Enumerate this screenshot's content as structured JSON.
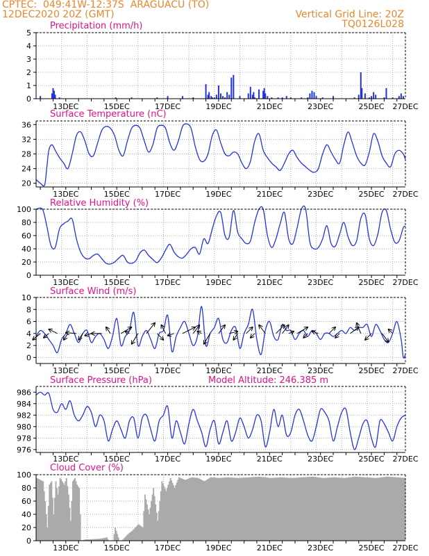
{
  "header": {
    "line1": "CPTEC:  049:41W-12:37S  ARAGUACU (TO)",
    "line2": "12DEC2020 20Z (GMT)",
    "grid_note": "Vertical Grid Line: 20Z",
    "code": "TQ0126L028"
  },
  "colors": {
    "header": "#e8862b",
    "title": "#e0118c",
    "series": "#2233dd",
    "bars": "#2233dd",
    "wind_arrows": "#000000",
    "cloud": "#aaaaaa",
    "grid": "#aaaaaa"
  },
  "x_axis": {
    "unit": "hours since 12DEC2020 20Z",
    "range": [
      0,
      348
    ],
    "grid_hours": [
      24,
      48,
      72,
      96,
      120,
      144,
      168,
      192,
      216,
      240,
      264,
      288,
      312,
      336
    ],
    "labels": [
      "13DEC",
      "15DEC",
      "17DEC",
      "19DEC",
      "21DEC",
      "23DEC",
      "25DEC",
      "27DEC"
    ],
    "label_hours": [
      28,
      76,
      124,
      172,
      220,
      268,
      316,
      348
    ]
  },
  "chart_data": [
    {
      "type": "bar",
      "title": "Precipitation (mm/h)",
      "ylim": [
        0,
        5
      ],
      "yticks": [
        0,
        1,
        2,
        3,
        4,
        5
      ],
      "x": [
        4,
        15,
        16,
        17,
        18,
        22,
        75,
        90,
        114,
        124,
        138,
        148,
        160,
        162,
        163,
        165,
        166,
        168,
        170,
        172,
        174,
        176,
        178,
        180,
        182,
        184,
        186,
        192,
        200,
        202,
        204,
        205,
        206,
        210,
        214,
        215,
        216,
        218,
        222,
        228,
        232,
        236,
        240,
        250,
        256,
        258,
        260,
        262,
        264,
        270,
        280,
        300,
        304,
        306,
        307,
        310,
        314,
        316,
        318,
        320,
        328,
        330,
        336,
        342,
        344,
        346
      ],
      "values": [
        0.2,
        0.4,
        0.8,
        0.6,
        0.3,
        0.1,
        0.1,
        0.1,
        0.1,
        0.2,
        0.2,
        0.1,
        1.1,
        0.3,
        0.5,
        0.2,
        0.1,
        0.1,
        0.3,
        1.0,
        0.4,
        0.2,
        0.1,
        0.5,
        0.3,
        1.6,
        1.8,
        0.2,
        0.4,
        0.9,
        0.3,
        0.5,
        0.1,
        0.7,
        0.6,
        0.8,
        0.4,
        0.2,
        0.1,
        0.1,
        0.1,
        0.2,
        0.1,
        0.1,
        0.1,
        0.4,
        0.6,
        0.5,
        0.2,
        0.1,
        0.2,
        0.1,
        0.3,
        2.0,
        0.8,
        0.4,
        0.1,
        0.2,
        0.5,
        0.3,
        0.1,
        0.8,
        0.1,
        0.2,
        0.4,
        0.2
      ]
    },
    {
      "type": "line",
      "title": "Surface Temperature (nC)",
      "ylim": [
        19,
        37
      ],
      "yticks": [
        20,
        24,
        28,
        32,
        36
      ],
      "x": [
        0,
        4,
        8,
        10,
        12,
        15,
        18,
        22,
        26,
        30,
        34,
        38,
        42,
        46,
        50,
        54,
        58,
        62,
        66,
        70,
        74,
        78,
        82,
        86,
        90,
        94,
        98,
        102,
        106,
        110,
        114,
        118,
        122,
        126,
        130,
        134,
        138,
        142,
        146,
        150,
        154,
        158,
        162,
        166,
        170,
        174,
        178,
        182,
        186,
        190,
        194,
        198,
        202,
        206,
        210,
        214,
        218,
        222,
        226,
        230,
        234,
        238,
        242,
        246,
        250,
        254,
        258,
        262,
        266,
        270,
        274,
        278,
        282,
        286,
        290,
        294,
        298,
        302,
        306,
        310,
        314,
        318,
        322,
        326,
        330,
        334,
        338,
        342,
        346,
        348
      ],
      "values": [
        21,
        20,
        19.5,
        24,
        29,
        30.5,
        29,
        27,
        25.5,
        24,
        28,
        33,
        34,
        31.5,
        28,
        27.5,
        31,
        34.5,
        35.5,
        35,
        33,
        29,
        27.5,
        31.5,
        35,
        35.8,
        35,
        31.5,
        28.5,
        30.5,
        35,
        35.8,
        35,
        31,
        29,
        31.5,
        35.5,
        36.2,
        35,
        30,
        26.5,
        26,
        28,
        33,
        34.5,
        31,
        28,
        27.5,
        28.5,
        28,
        25.5,
        24,
        26,
        31.5,
        33.5,
        29,
        27,
        25.5,
        24.5,
        23.5,
        25.5,
        28,
        29,
        27,
        25.5,
        24.5,
        23.5,
        23,
        24,
        28,
        30.5,
        28.5,
        26.5,
        25.5,
        30.5,
        34,
        31,
        27.5,
        25.5,
        25,
        28.5,
        33.5,
        31.5,
        27.5,
        25.5,
        24.5,
        28,
        29,
        28,
        26.5
      ]
    },
    {
      "type": "line",
      "title": "Relative Humidity (%)",
      "ylim": [
        0,
        100
      ],
      "yticks": [
        0,
        20,
        40,
        60,
        80,
        100
      ],
      "x": [
        0,
        6,
        10,
        14,
        18,
        22,
        26,
        30,
        34,
        38,
        42,
        46,
        50,
        54,
        58,
        62,
        66,
        70,
        74,
        78,
        82,
        86,
        90,
        94,
        98,
        102,
        106,
        110,
        114,
        118,
        122,
        126,
        130,
        134,
        138,
        142,
        146,
        150,
        154,
        158,
        162,
        166,
        170,
        174,
        178,
        182,
        186,
        190,
        194,
        198,
        202,
        206,
        210,
        214,
        218,
        222,
        226,
        230,
        234,
        238,
        242,
        246,
        250,
        254,
        258,
        262,
        266,
        270,
        274,
        278,
        282,
        286,
        290,
        294,
        298,
        302,
        306,
        310,
        314,
        318,
        322,
        326,
        330,
        334,
        338,
        342,
        346,
        348
      ],
      "values": [
        100,
        100,
        75,
        45,
        42,
        70,
        78,
        82,
        85,
        55,
        35,
        26,
        25,
        30,
        32,
        25,
        18,
        17,
        20,
        26,
        30,
        20,
        18,
        22,
        34,
        38,
        30,
        24,
        19,
        26,
        38,
        47,
        35,
        28,
        26,
        32,
        40,
        42,
        32,
        55,
        48,
        70,
        90,
        95,
        60,
        58,
        98,
        65,
        55,
        48,
        52,
        80,
        100,
        100,
        60,
        42,
        55,
        78,
        95,
        55,
        48,
        72,
        100,
        100,
        50,
        40,
        42,
        55,
        75,
        48,
        44,
        62,
        80,
        58,
        45,
        52,
        86,
        92,
        55,
        45,
        62,
        95,
        98,
        70,
        50,
        52,
        72,
        74
      ]
    },
    {
      "type": "line",
      "title": "Surface Wind (m/s)",
      "ylim": [
        -1,
        10
      ],
      "yticks": [
        0,
        2,
        4,
        6,
        8,
        10
      ],
      "x": [
        0,
        4,
        8,
        12,
        16,
        20,
        24,
        28,
        32,
        36,
        40,
        44,
        48,
        52,
        56,
        60,
        64,
        68,
        72,
        76,
        80,
        84,
        88,
        92,
        96,
        100,
        104,
        108,
        112,
        116,
        120,
        124,
        128,
        132,
        136,
        140,
        144,
        148,
        152,
        156,
        160,
        164,
        168,
        172,
        176,
        180,
        184,
        188,
        192,
        196,
        200,
        204,
        208,
        212,
        216,
        220,
        224,
        228,
        232,
        236,
        240,
        244,
        248,
        252,
        256,
        260,
        264,
        268,
        272,
        276,
        280,
        284,
        288,
        292,
        296,
        300,
        304,
        308,
        312,
        316,
        320,
        324,
        328,
        332,
        336,
        340,
        344,
        346,
        348
      ],
      "values": [
        3.5,
        4.5,
        4,
        3,
        2,
        0.8,
        3,
        4,
        5.5,
        4,
        2.5,
        4,
        4.5,
        2.5,
        3.5,
        4,
        3,
        1.5,
        3.5,
        6.5,
        2,
        3.5,
        4.5,
        7.5,
        2,
        3.5,
        4.5,
        3,
        1.5,
        4,
        4.5,
        7,
        1,
        3.5,
        5,
        6,
        4,
        2,
        3.5,
        8.5,
        2,
        4,
        5,
        6.5,
        3,
        2.5,
        4.5,
        5,
        1.5,
        4,
        5.5,
        8,
        3,
        0.5,
        4.5,
        6,
        3.5,
        3,
        5.5,
        4.5,
        4.5,
        3,
        4,
        4.5,
        3.5,
        4.5,
        4,
        3,
        4,
        4,
        3.5,
        4,
        4.5,
        4,
        5,
        4.5,
        5,
        5,
        5.5,
        3.5,
        5.5,
        4.5,
        3,
        2.5,
        4,
        6,
        3,
        0,
        0.5
      ],
      "arrows_x": [
        4,
        12,
        20,
        30,
        38,
        44,
        52,
        62,
        70,
        80,
        88,
        96,
        104,
        114,
        122,
        130,
        138,
        148,
        156,
        164,
        172,
        182,
        190,
        198,
        206,
        216,
        226,
        232,
        238,
        246,
        256,
        266,
        276,
        286,
        296,
        306,
        316,
        326,
        336
      ],
      "arrows_u": [
        -1.8,
        -1.2,
        -2,
        -1,
        -2.5,
        -1,
        -1.5,
        -2.5,
        -1,
        2.5,
        -1,
        -1.5,
        2,
        1.5,
        -1,
        -1.5,
        3,
        1.5,
        -1,
        -1.5,
        1.5,
        2,
        -1,
        1.5,
        -1,
        -1.5,
        2,
        1.5,
        1.2,
        2.5,
        -1,
        -1.5,
        1.5,
        -1,
        2,
        -1,
        -1.5,
        1.5,
        -1
      ],
      "arrows_v": [
        -1.5,
        -1,
        1,
        -1.5,
        0.2,
        -1.5,
        -0.5,
        0,
        1.5,
        1.5,
        0.5,
        -2.5,
        2.5,
        -1.5,
        2,
        -0.5,
        1.5,
        2,
        0.5,
        -2.5,
        2,
        0.5,
        -1.5,
        1.5,
        -1,
        2,
        2,
        2,
        0.5,
        1.5,
        -1,
        0.5,
        1.5,
        -1,
        1.5,
        2.5,
        -1.5,
        -2,
        1
      ]
    },
    {
      "type": "line",
      "title": "Surface Pressure (hPa)",
      "subtitle": "Model Altitude: 246.385 m",
      "ylim": [
        975.5,
        987
      ],
      "yticks": [
        976,
        978,
        980,
        982,
        984,
        986
      ],
      "x": [
        0,
        4,
        8,
        12,
        16,
        20,
        24,
        28,
        32,
        36,
        40,
        44,
        48,
        52,
        56,
        60,
        64,
        68,
        72,
        76,
        80,
        84,
        88,
        92,
        96,
        100,
        104,
        108,
        112,
        116,
        120,
        124,
        128,
        132,
        136,
        140,
        144,
        148,
        152,
        156,
        160,
        164,
        168,
        172,
        176,
        180,
        184,
        188,
        192,
        196,
        200,
        204,
        208,
        212,
        216,
        220,
        224,
        228,
        232,
        236,
        240,
        244,
        248,
        252,
        256,
        260,
        264,
        268,
        272,
        276,
        280,
        284,
        288,
        292,
        296,
        300,
        304,
        308,
        312,
        316,
        320,
        324,
        328,
        332,
        336,
        340,
        344,
        348
      ],
      "values": [
        985.5,
        986,
        985.5,
        985.8,
        983,
        982.5,
        984,
        983,
        984.5,
        982,
        981,
        982,
        983.5,
        982.5,
        980,
        982,
        981,
        977.5,
        979.5,
        981,
        979.5,
        978,
        981,
        981.5,
        978,
        981.5,
        982,
        979.5,
        977.5,
        981,
        982,
        983.5,
        978,
        981,
        979,
        977,
        980.5,
        983,
        981,
        979,
        976.5,
        979.5,
        981,
        977,
        979,
        981,
        977.5,
        979,
        981.5,
        980,
        978,
        979.5,
        982,
        981,
        976.5,
        979,
        983,
        980,
        982,
        978.5,
        979,
        982,
        983,
        981,
        978.5,
        977.5,
        980,
        983,
        982.5,
        981,
        977.5,
        980,
        982.5,
        983,
        979,
        976,
        978,
        980.5,
        981,
        978,
        976.5,
        981,
        980.5,
        979,
        977.5,
        980,
        981.5,
        982
      ]
    },
    {
      "type": "area",
      "title": "Cloud Cover (%)",
      "ylim": [
        0,
        100
      ],
      "yticks": [
        0,
        20,
        40,
        60,
        80,
        100
      ],
      "x": [
        0,
        6,
        8,
        10,
        12,
        14,
        16,
        18,
        20,
        22,
        24,
        26,
        28,
        30,
        32,
        34,
        36,
        38,
        40,
        42,
        46,
        50,
        60,
        66,
        68,
        70,
        72,
        74,
        76,
        78,
        80,
        82,
        86,
        90,
        96,
        100,
        102,
        106,
        110,
        114,
        118,
        122,
        126,
        130,
        134,
        140,
        146,
        152,
        158,
        164,
        172,
        180,
        190,
        200,
        210,
        220,
        230,
        240,
        250,
        260,
        270,
        280,
        290,
        300,
        310,
        320,
        330,
        340,
        348
      ],
      "values": [
        95,
        90,
        60,
        20,
        85,
        90,
        40,
        90,
        70,
        95,
        90,
        85,
        95,
        70,
        30,
        90,
        95,
        85,
        80,
        0,
        2,
        2,
        3,
        5,
        0,
        0,
        0,
        20,
        10,
        0,
        0,
        3,
        10,
        15,
        25,
        20,
        70,
        40,
        80,
        30,
        90,
        75,
        95,
        80,
        96,
        92,
        96,
        95,
        90,
        96,
        95,
        96,
        95,
        96,
        97,
        95,
        96,
        95,
        96,
        97,
        95,
        96,
        95,
        97,
        96,
        95,
        97,
        96,
        95
      ]
    }
  ]
}
